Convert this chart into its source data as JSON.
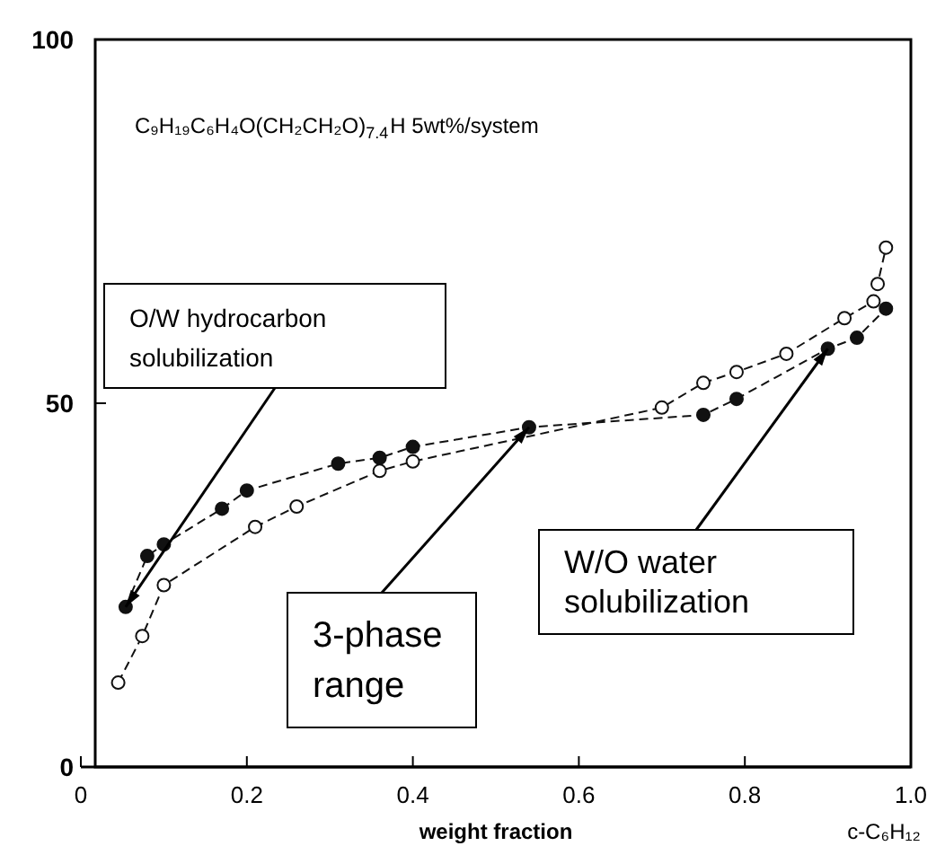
{
  "chart_data": {
    "type": "line",
    "title": "C₉H₁₉C₆H₄O(CH₂CH₂O)$_{7.4}$H     5wt%/system",
    "xlabel": "weight   fraction",
    "xlim": [
      0,
      1
    ],
    "ylim": [
      0,
      100
    ],
    "xticks": [
      0,
      0.2,
      0.4,
      0.6,
      0.8,
      {
        "value": 1,
        "label": "1.0"
      }
    ],
    "yticks": [
      0,
      50,
      100
    ],
    "grid": false,
    "marker": "circle",
    "line_style": "dashed",
    "series": [
      {
        "color": "#111111",
        "x": [
          0.054,
          0.08,
          0.1,
          0.17,
          0.2,
          0.31,
          0.36,
          0.4,
          0.54,
          0.75,
          0.79,
          0.9,
          0.935,
          0.97
        ],
        "values": [
          22,
          29,
          30.6,
          35.5,
          38,
          41.7,
          42.5,
          44,
          46.7,
          48.4,
          50.6,
          57.5,
          59,
          63
        ]
      },
      {
        "color": "#111111",
        "x": [
          0.045,
          0.074,
          0.1,
          0.21,
          0.26,
          0.36,
          0.4,
          0.7,
          0.75,
          0.79,
          0.85,
          0.92,
          0.955,
          0.96,
          0.97
        ],
        "values": [
          11.6,
          18,
          25,
          33,
          35.8,
          40.7,
          42,
          49.4,
          52.8,
          54.3,
          56.8,
          61.7,
          64,
          66.4,
          71.4
        ]
      }
    ],
    "annotations": [
      {
        "text": "O/W hydrocarbon solubilization",
        "x": 0.054,
        "y": 22
      },
      {
        "text": "3-phase range",
        "x": 0.54,
        "y": 46.7
      },
      {
        "text": "W/O water solubilization",
        "x": 0.9,
        "y": 57.5
      },
      "c-C₆H₁₂"
    ]
  }
}
